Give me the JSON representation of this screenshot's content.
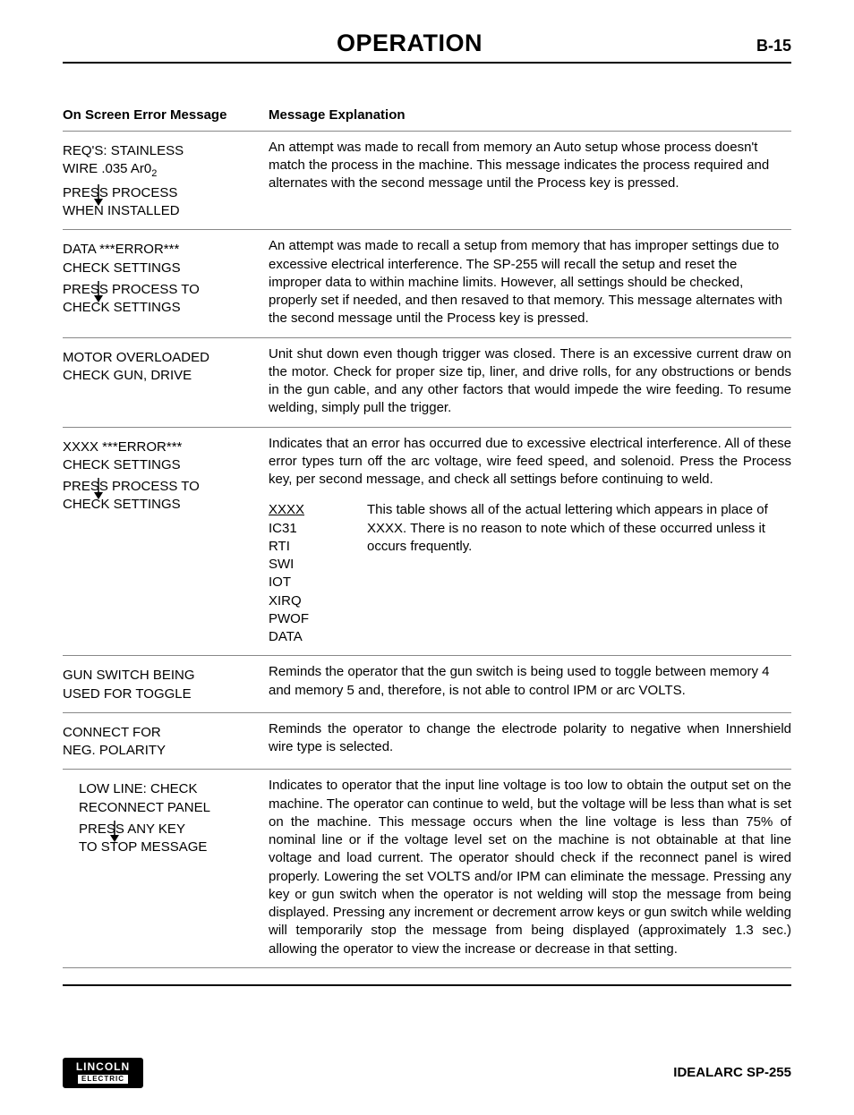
{
  "header": {
    "title": "OPERATION",
    "pageno": "B-15"
  },
  "columns": {
    "left": "On Screen Error Message",
    "right": "Message Explanation"
  },
  "rows": [
    {
      "msg_top1": "REQ'S: STAINLESS",
      "msg_top2": "WIRE .035 Ar0",
      "msg_top2_sub": "2",
      "msg_bot1": "PRESS PROCESS",
      "msg_bot2": "WHEN INSTALLED",
      "exp": "An attempt was made to recall from memory an Auto setup whose process doesn't match the process in the machine. This message indicates the process required and alternates with the second message until the Process key is pressed."
    },
    {
      "msg_top1": "DATA ***ERROR***",
      "msg_top2": "CHECK SETTINGS",
      "msg_bot1": "PRESS PROCESS TO",
      "msg_bot2": "CHECK SETTINGS",
      "exp": "An attempt was made to recall a setup from memory that has improper settings due to excessive electrical interference. The SP-255 will recall the setup and reset the improper data to within machine limits. However, all settings should be checked, properly set if needed, and then resaved to that memory. This message alternates with the second message until the Process key is pressed."
    },
    {
      "msg_top1": "MOTOR OVERLOADED",
      "msg_top2": "CHECK GUN, DRIVE",
      "exp": "Unit shut down even though trigger was closed. There is an excessive current draw on the motor. Check for proper size tip, liner, and drive rolls, for any obstructions or bends in the gun cable, and any other factors that would impede the wire feeding. To resume welding, simply pull the trigger.",
      "justify": true
    },
    {
      "msg_top1": "XXXX ***ERROR***",
      "msg_top2": "CHECK SETTINGS",
      "msg_bot1": "PRESS PROCESS TO",
      "msg_bot2": "CHECK SETTINGS",
      "exp": "Indicates that an error has occurred due to excessive electrical interference. All of these error types turn off the arc voltage, wire feed speed, and solenoid. Press the Process key, per second message, and check all settings before continuing to weld.",
      "justify": true,
      "subtable": {
        "head": "XXXX",
        "codes": [
          "IC31",
          "RTI",
          "SWI",
          "IOT",
          "XIRQ",
          "PWOF",
          "DATA"
        ],
        "note1": "This table shows all of the actual lettering which appears in place of",
        "note2": "XXXX. There is no reason to note which of these occurred unless it",
        "note3": "occurs frequently."
      }
    },
    {
      "msg_top1": "GUN SWITCH BEING",
      "msg_top2": "USED FOR TOGGLE",
      "exp": "Reminds the operator that the gun switch is being used to toggle between memory 4 and memory 5 and, therefore, is not able to control IPM or arc VOLTS."
    },
    {
      "msg_top1": "CONNECT FOR",
      "msg_top2": "NEG. POLARITY",
      "exp": "Reminds the operator to change the electrode polarity to negative when Innershield wire type is selected.",
      "justify": true
    },
    {
      "msg_top1": "LOW LINE: CHECK",
      "msg_top2": "RECONNECT PANEL",
      "msg_bot1": "PRESS ANY KEY",
      "msg_bot2": "TO STOP MESSAGE",
      "indent": true,
      "exp": "Indicates to operator that the input line voltage is too low to obtain the output set on the machine. The operator can continue to weld, but the voltage will be less than what is set on the machine. This message occurs when the line voltage is less than 75% of nominal line or if the voltage level set on the machine is not obtainable at that line voltage and load current. The operator should check if the reconnect panel is wired properly. Lowering the set VOLTS and/or IPM can eliminate the message. Pressing any key or gun switch when the operator is not welding will stop the message from being displayed. Pressing any increment or decrement arrow keys or gun switch while welding will temporarily stop the message from being displayed (approximately 1.3 sec.) allowing the operator to view the increase or decrease in that setting.",
      "justify": true
    }
  ],
  "footer": {
    "logo1": "LINCOLN",
    "logo2": "ELECTRIC",
    "model": "IDEALARC SP-255"
  }
}
